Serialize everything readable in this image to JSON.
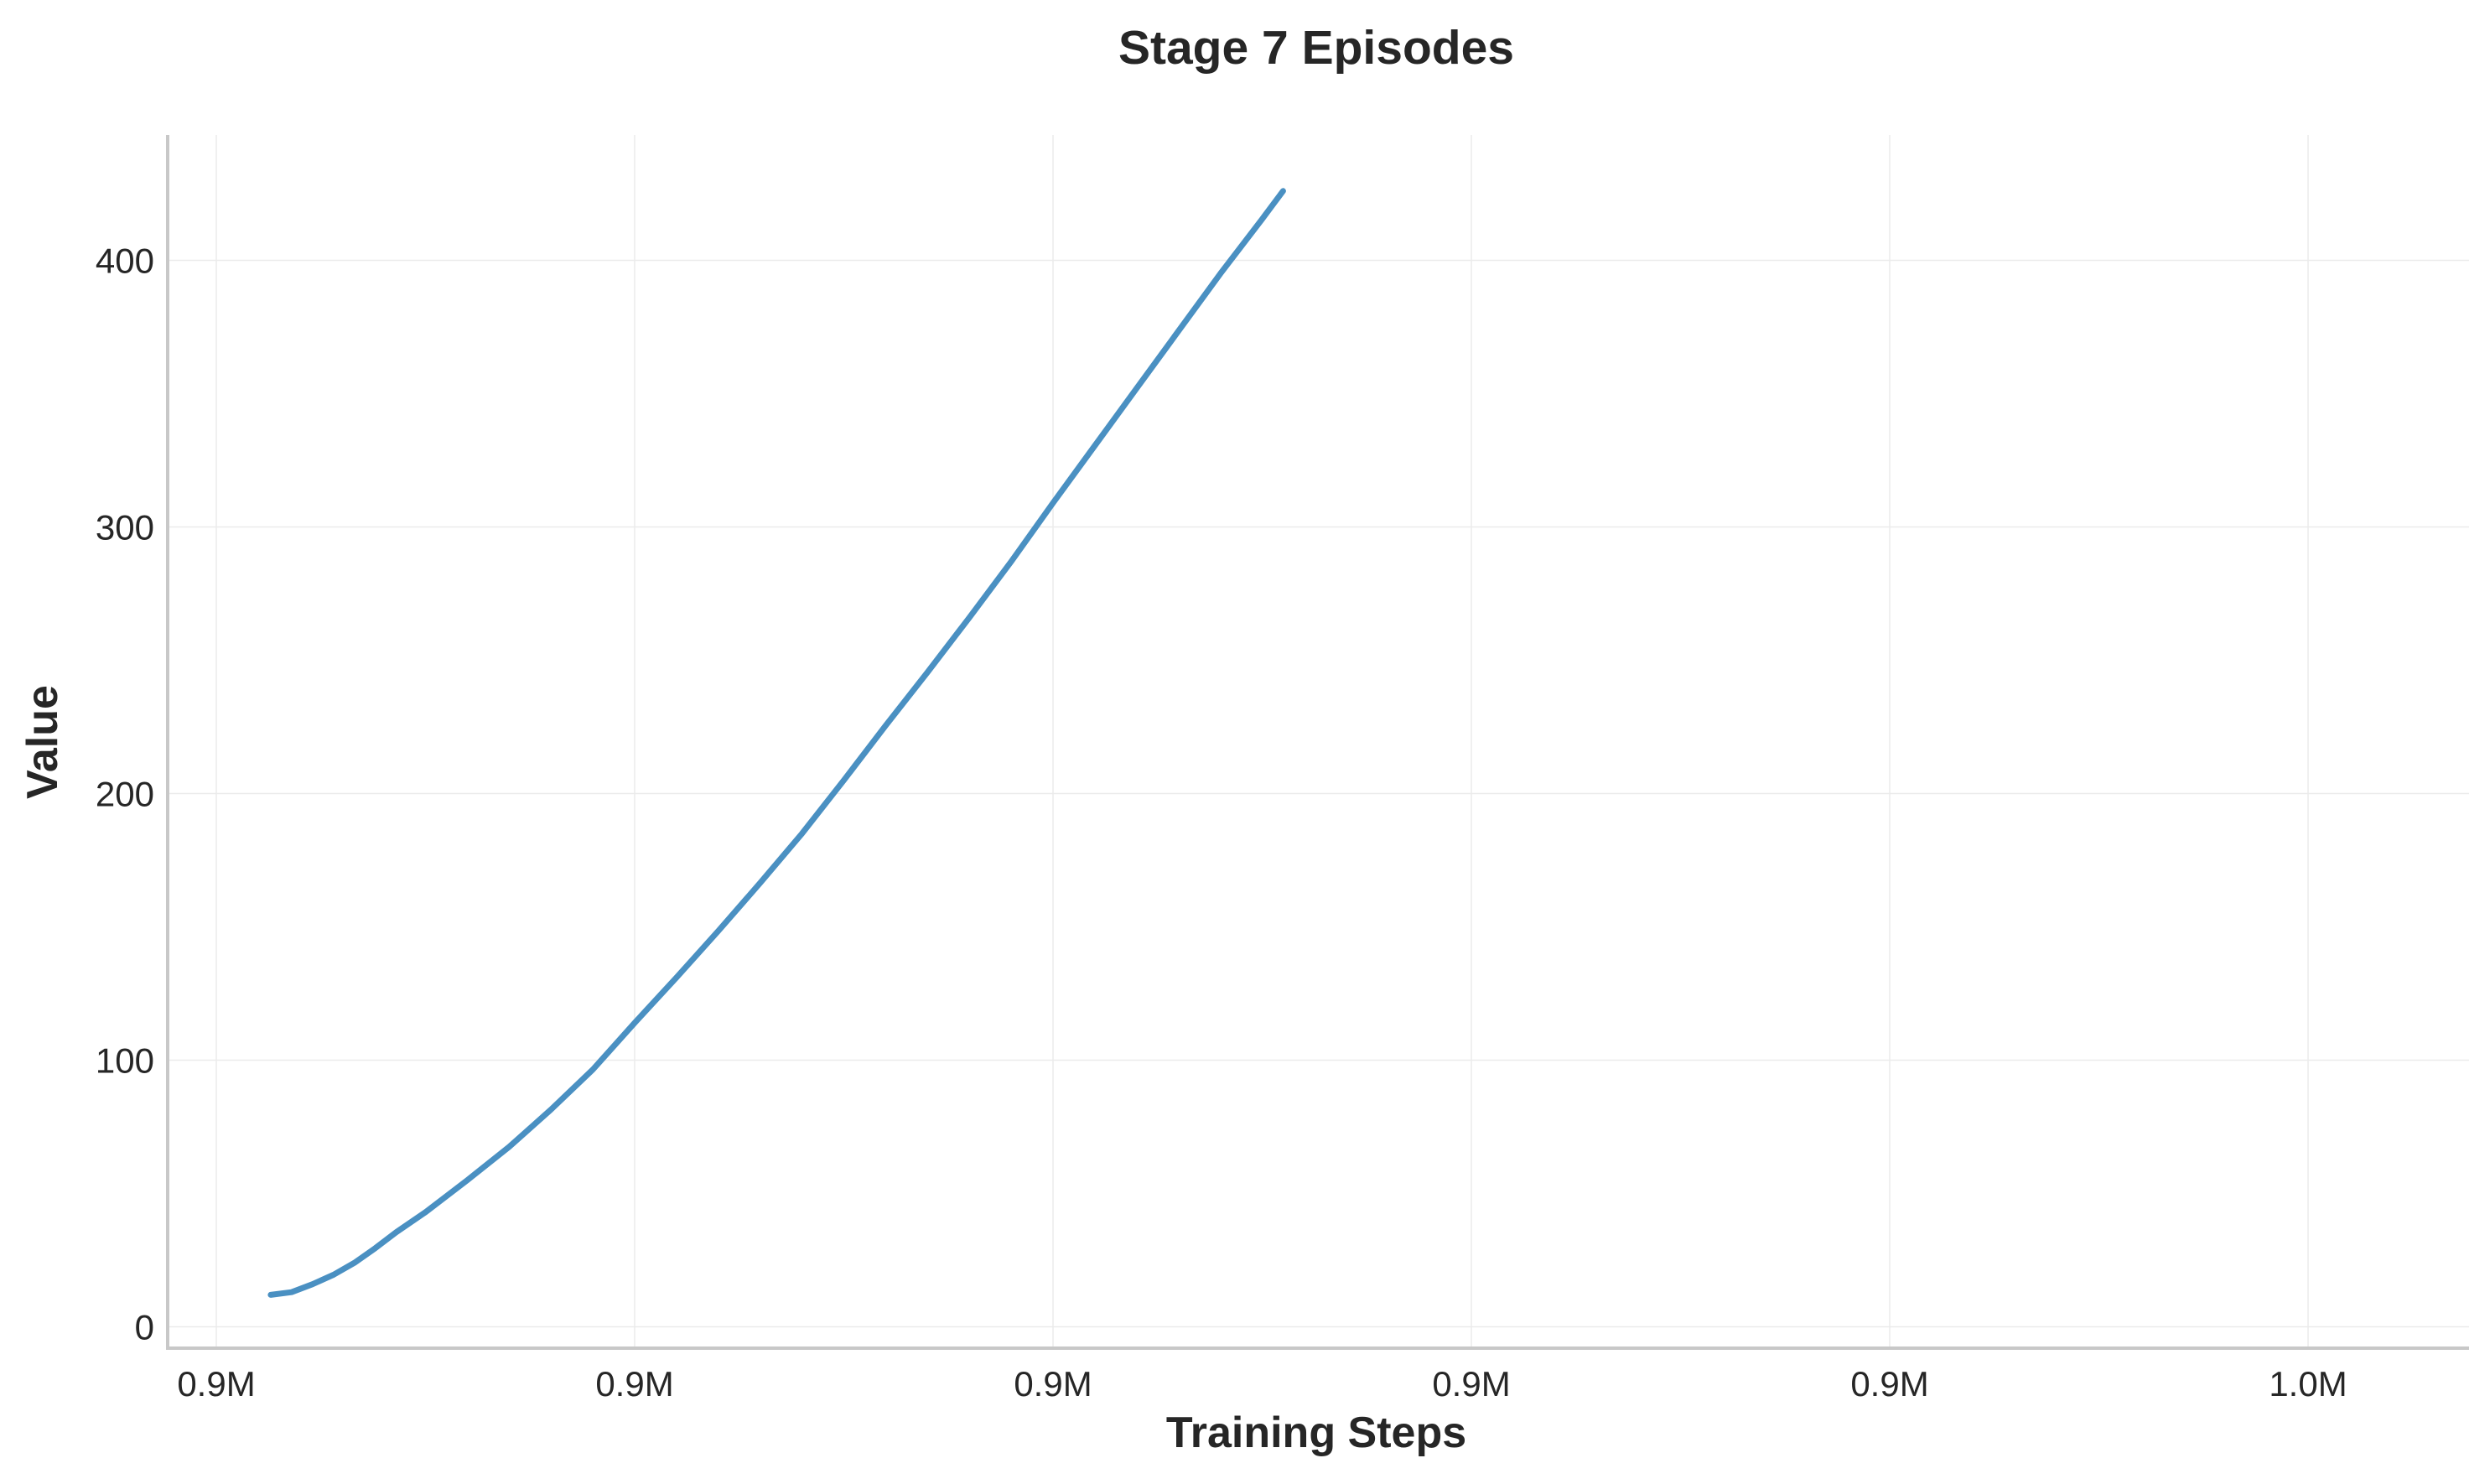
{
  "chart_data": {
    "type": "line",
    "title": "Stage 7 Episodes",
    "xlabel": "Training Steps",
    "ylabel": "Value",
    "x_ticks": [
      "0.9M",
      "0.9M",
      "0.9M",
      "0.9M",
      "0.9M",
      "1.0M"
    ],
    "y_ticks": [
      "0",
      "100",
      "200",
      "300",
      "400"
    ],
    "ylim": [
      -8,
      447
    ],
    "grid": true,
    "legend": "none",
    "series": [
      {
        "color": "#4a90c2",
        "points": [
          [
            0.13,
            12
          ],
          [
            0.18,
            13
          ],
          [
            0.23,
            16
          ],
          [
            0.28,
            19.5
          ],
          [
            0.33,
            24
          ],
          [
            0.38,
            29.5
          ],
          [
            0.43,
            35.5
          ],
          [
            0.5,
            43
          ],
          [
            0.6,
            55
          ],
          [
            0.7,
            67.5
          ],
          [
            0.8,
            81.5
          ],
          [
            0.9,
            96.5
          ],
          [
            1.0,
            114
          ],
          [
            1.1,
            131
          ],
          [
            1.2,
            148.5
          ],
          [
            1.3,
            166.5
          ],
          [
            1.4,
            185
          ],
          [
            1.5,
            205
          ],
          [
            1.6,
            225.5
          ],
          [
            1.7,
            245.5
          ],
          [
            1.8,
            266
          ],
          [
            1.9,
            287
          ],
          [
            2.0,
            309
          ],
          [
            2.1,
            330.5
          ],
          [
            2.2,
            352
          ],
          [
            2.3,
            373.5
          ],
          [
            2.4,
            395
          ],
          [
            2.5,
            415.5
          ],
          [
            2.55,
            426
          ]
        ]
      }
    ]
  }
}
